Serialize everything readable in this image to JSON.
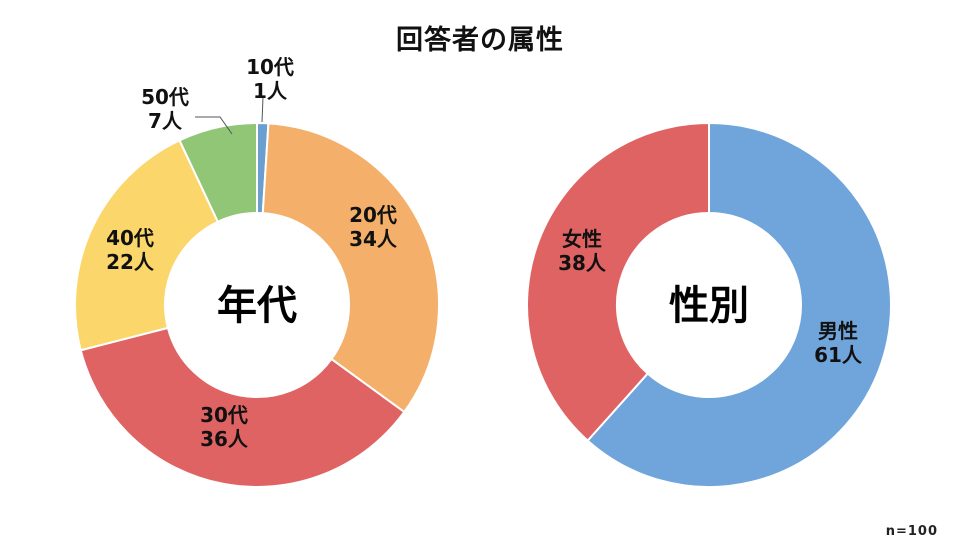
{
  "title": "回答者の属性",
  "note": "n=100",
  "chart_data": [
    {
      "type": "pie",
      "title": "年代",
      "donut": true,
      "categories": [
        "10代",
        "20代",
        "30代",
        "40代",
        "50代"
      ],
      "values": [
        1,
        34,
        36,
        22,
        7
      ],
      "value_labels": [
        "1人",
        "34人",
        "36人",
        "22人",
        "7人"
      ],
      "colors": [
        "#6a9fd0",
        "#f4b06a",
        "#e06363",
        "#fbd66a",
        "#92c677"
      ],
      "legend": "none"
    },
    {
      "type": "pie",
      "title": "性別",
      "donut": true,
      "categories": [
        "男性",
        "女性"
      ],
      "values": [
        61,
        38
      ],
      "value_labels": [
        "61人",
        "38人"
      ],
      "colors": [
        "#6fa5db",
        "#e06363"
      ],
      "legend": "none"
    }
  ]
}
